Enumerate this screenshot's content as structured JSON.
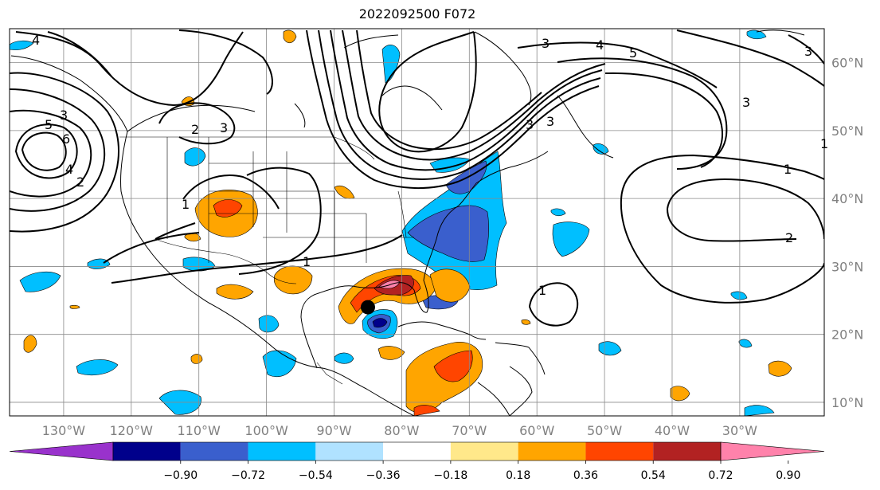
{
  "title": "2022092500 F072",
  "lon_ticks": [
    {
      "label": "130°W",
      "lon": -130
    },
    {
      "label": "120°W",
      "lon": -120
    },
    {
      "label": "110°W",
      "lon": -110
    },
    {
      "label": "100°W",
      "lon": -100
    },
    {
      "label": "90°W",
      "lon": -90
    },
    {
      "label": "80°W",
      "lon": -80
    },
    {
      "label": "70°W",
      "lon": -70
    },
    {
      "label": "60°W",
      "lon": -60
    },
    {
      "label": "50°W",
      "lon": -50
    },
    {
      "label": "40°W",
      "lon": -40
    },
    {
      "label": "30°W",
      "lon": -30
    }
  ],
  "lat_ticks": [
    {
      "label": "60°N",
      "lat": 60
    },
    {
      "label": "50°N",
      "lat": 50
    },
    {
      "label": "40°N",
      "lat": 40
    },
    {
      "label": "30°N",
      "lat": 30
    },
    {
      "label": "20°N",
      "lat": 20
    },
    {
      "label": "10°N",
      "lat": 10
    }
  ],
  "colorbar": {
    "colors": [
      "#9932cc",
      "#00008b",
      "#3a5fcd",
      "#00bfff",
      "#b0e2ff",
      "#ffffff",
      "#ffe88a",
      "#ffa500",
      "#ff4500",
      "#b22222",
      "#ff82ab"
    ],
    "tick_labels": [
      "−0.90",
      "−0.72",
      "−0.54",
      "−0.36",
      "−0.18",
      "0.18",
      "0.36",
      "0.54",
      "0.72",
      "0.90"
    ]
  },
  "contour_labels": [
    "4",
    "3",
    "4",
    "3",
    "5",
    "5",
    "6",
    "4",
    "2",
    "3",
    "2",
    "3",
    "3",
    "1",
    "1",
    "1",
    "1",
    "2",
    "3",
    "3",
    "1"
  ],
  "storm_marker": {
    "lon": -85,
    "lat": 24
  }
}
